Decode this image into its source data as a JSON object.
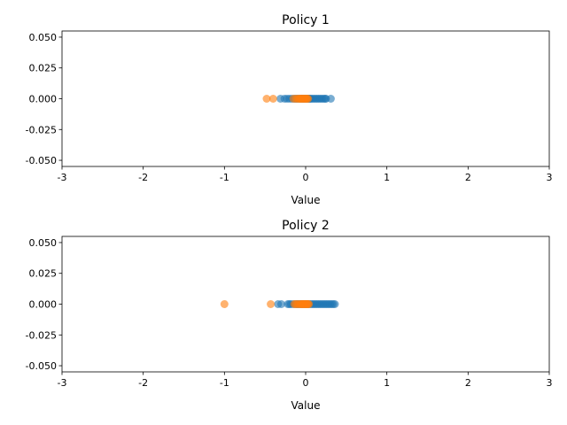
{
  "chart_data": [
    {
      "type": "scatter",
      "title": "Policy 1",
      "xlabel": "Value",
      "ylabel": "",
      "xlim": [
        -3,
        3
      ],
      "ylim": [
        -0.055,
        0.055
      ],
      "xticks": [
        "-3",
        "-2",
        "-1",
        "0",
        "1",
        "2",
        "3"
      ],
      "xtick_values": [
        -3,
        -2,
        -1,
        0,
        1,
        2,
        3
      ],
      "yticks": [
        "0.050",
        "0.025",
        "0.000",
        "-0.025",
        "-0.050"
      ],
      "ytick_values": [
        0.05,
        0.025,
        0.0,
        -0.025,
        -0.05
      ],
      "grid": false,
      "series": [
        {
          "color": "#1f77b4",
          "x": [
            -0.31,
            -0.26,
            -0.23,
            -0.2,
            -0.17,
            -0.14,
            -0.12,
            -0.1,
            -0.08,
            -0.06,
            -0.05,
            -0.04,
            -0.03,
            -0.02,
            -0.01,
            0.0,
            0.01,
            0.02,
            0.03,
            0.04,
            0.05,
            0.06,
            0.08,
            0.1,
            0.12,
            0.14,
            0.16,
            0.18,
            0.2,
            0.22,
            0.24,
            0.25,
            0.31
          ],
          "y": [
            0,
            0,
            0,
            0,
            0,
            0,
            0,
            0,
            0,
            0,
            0,
            0,
            0,
            0,
            0,
            0,
            0,
            0,
            0,
            0,
            0,
            0,
            0,
            0,
            0,
            0,
            0,
            0,
            0,
            0,
            0,
            0,
            0
          ]
        },
        {
          "color": "#ff7f0e",
          "x": [
            -0.48,
            -0.4,
            -0.15,
            -0.12,
            -0.1,
            -0.08,
            -0.07,
            -0.06,
            -0.05,
            -0.04,
            -0.03,
            -0.02,
            -0.01,
            0.0,
            0.01,
            0.02,
            0.03
          ],
          "y": [
            0,
            0,
            0,
            0,
            0,
            0,
            0,
            0,
            0,
            0,
            0,
            0,
            0,
            0,
            0,
            0,
            0
          ]
        }
      ]
    },
    {
      "type": "scatter",
      "title": "Policy 2",
      "xlabel": "Value",
      "ylabel": "",
      "xlim": [
        -3,
        3
      ],
      "ylim": [
        -0.055,
        0.055
      ],
      "xticks": [
        "-3",
        "-2",
        "-1",
        "0",
        "1",
        "2",
        "3"
      ],
      "xtick_values": [
        -3,
        -2,
        -1,
        0,
        1,
        2,
        3
      ],
      "yticks": [
        "0.050",
        "0.025",
        "0.000",
        "-0.025",
        "-0.050"
      ],
      "ytick_values": [
        0.05,
        0.025,
        0.0,
        -0.025,
        -0.05
      ],
      "grid": false,
      "series": [
        {
          "color": "#1f77b4",
          "x": [
            -0.34,
            -0.3,
            -0.22,
            -0.2,
            -0.18,
            -0.15,
            -0.12,
            -0.1,
            -0.08,
            -0.06,
            -0.04,
            -0.02,
            0.0,
            0.02,
            0.04,
            0.06,
            0.08,
            0.1,
            0.12,
            0.14,
            0.16,
            0.18,
            0.2,
            0.22,
            0.24,
            0.26,
            0.28,
            0.3,
            0.32,
            0.34,
            0.36
          ],
          "y": [
            0,
            0,
            0,
            0,
            0,
            0,
            0,
            0,
            0,
            0,
            0,
            0,
            0,
            0,
            0,
            0,
            0,
            0,
            0,
            0,
            0,
            0,
            0,
            0,
            0,
            0,
            0,
            0,
            0,
            0,
            0
          ]
        },
        {
          "color": "#ff7f0e",
          "x": [
            -1.0,
            -0.43,
            -0.14,
            -0.12,
            -0.1,
            -0.08,
            -0.06,
            -0.05,
            -0.04,
            -0.03,
            -0.02,
            -0.01,
            0.0,
            0.01,
            0.02,
            0.03,
            0.04
          ],
          "y": [
            0,
            0,
            0,
            0,
            0,
            0,
            0,
            0,
            0,
            0,
            0,
            0,
            0,
            0,
            0,
            0,
            0
          ]
        }
      ]
    }
  ]
}
